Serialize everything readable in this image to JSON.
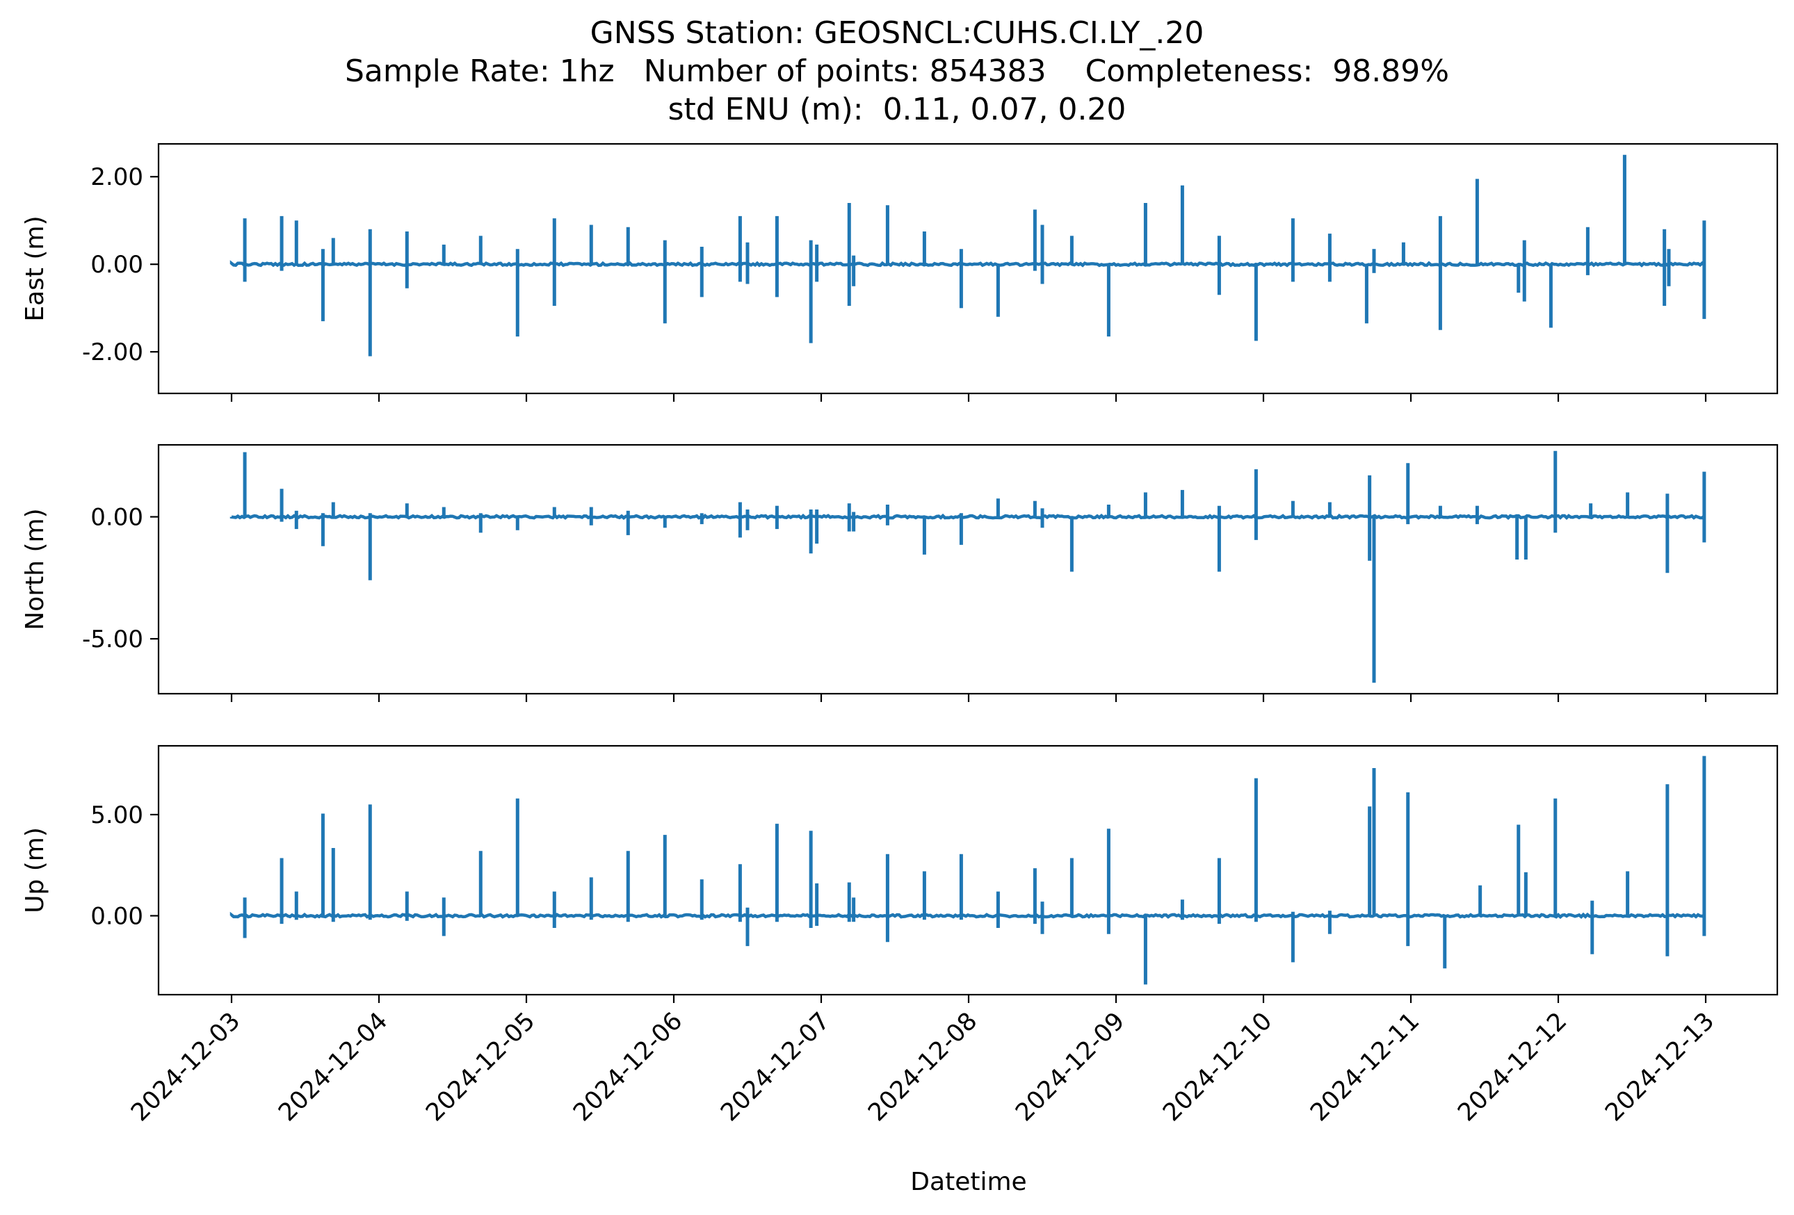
{
  "title": {
    "line1": "GNSS Station: GEOSNCL:CUHS.CI.LY_.20",
    "line2": "Sample Rate: 1hz   Number of points: 854383    Completeness:  98.89%",
    "line3": "std ENU (m):  0.11, 0.07, 0.20"
  },
  "xlabel": "Datetime",
  "x_ticks": [
    "2024-12-03",
    "2024-12-04",
    "2024-12-05",
    "2024-12-06",
    "2024-12-07",
    "2024-12-08",
    "2024-12-09",
    "2024-12-10",
    "2024-12-11",
    "2024-12-12",
    "2024-12-13"
  ],
  "colors": {
    "series": "#1f77b4",
    "axes": "#000000",
    "background": "#ffffff"
  },
  "chart_data": [
    {
      "type": "line",
      "ylabel": "East (m)",
      "x_units": "days",
      "xlim": [
        "2024-12-02 12:00",
        "2024-12-13 12:00"
      ],
      "ylim": [
        -2.95,
        2.75
      ],
      "y_ticks": [
        -2.0,
        0.0,
        2.0
      ],
      "y_tick_labels": [
        "-2.00",
        "0.00",
        "2.00"
      ],
      "baseline": 0.0,
      "spikes": [
        {
          "t": 0.09,
          "lo": -0.4,
          "hi": 1.05
        },
        {
          "t": 0.34,
          "lo": -0.15,
          "hi": 1.1
        },
        {
          "t": 0.44,
          "lo": 0.0,
          "hi": 1.0
        },
        {
          "t": 0.62,
          "lo": -1.3,
          "hi": 0.35
        },
        {
          "t": 0.69,
          "lo": 0.0,
          "hi": 0.6
        },
        {
          "t": 0.94,
          "lo": -2.1,
          "hi": 0.8
        },
        {
          "t": 1.19,
          "lo": -0.55,
          "hi": 0.75
        },
        {
          "t": 1.44,
          "lo": 0.0,
          "hi": 0.45
        },
        {
          "t": 1.69,
          "lo": 0.0,
          "hi": 0.65
        },
        {
          "t": 1.94,
          "lo": -1.65,
          "hi": 0.35
        },
        {
          "t": 2.19,
          "lo": -0.95,
          "hi": 1.05
        },
        {
          "t": 2.44,
          "lo": 0.0,
          "hi": 0.9
        },
        {
          "t": 2.69,
          "lo": 0.0,
          "hi": 0.85
        },
        {
          "t": 2.94,
          "lo": -1.35,
          "hi": 0.55
        },
        {
          "t": 3.19,
          "lo": -0.75,
          "hi": 0.4
        },
        {
          "t": 3.45,
          "lo": -0.4,
          "hi": 1.1
        },
        {
          "t": 3.5,
          "lo": -0.45,
          "hi": 0.5
        },
        {
          "t": 3.7,
          "lo": -0.75,
          "hi": 1.1
        },
        {
          "t": 3.93,
          "lo": -1.8,
          "hi": 0.55
        },
        {
          "t": 3.97,
          "lo": -0.4,
          "hi": 0.45
        },
        {
          "t": 4.19,
          "lo": -0.95,
          "hi": 1.4
        },
        {
          "t": 4.22,
          "lo": -0.5,
          "hi": 0.2
        },
        {
          "t": 4.45,
          "lo": 0.0,
          "hi": 1.35
        },
        {
          "t": 4.7,
          "lo": 0.0,
          "hi": 0.75
        },
        {
          "t": 4.95,
          "lo": -1.0,
          "hi": 0.35
        },
        {
          "t": 5.2,
          "lo": -1.2,
          "hi": 0.0
        },
        {
          "t": 5.45,
          "lo": -0.15,
          "hi": 1.25
        },
        {
          "t": 5.5,
          "lo": -0.45,
          "hi": 0.9
        },
        {
          "t": 5.7,
          "lo": 0.0,
          "hi": 0.65
        },
        {
          "t": 5.95,
          "lo": -1.65,
          "hi": 0.0
        },
        {
          "t": 6.2,
          "lo": 0.0,
          "hi": 1.4
        },
        {
          "t": 6.45,
          "lo": 0.0,
          "hi": 1.8
        },
        {
          "t": 6.7,
          "lo": -0.7,
          "hi": 0.65
        },
        {
          "t": 6.95,
          "lo": -1.75,
          "hi": 0.0
        },
        {
          "t": 7.2,
          "lo": -0.4,
          "hi": 1.05
        },
        {
          "t": 7.45,
          "lo": -0.4,
          "hi": 0.7
        },
        {
          "t": 7.7,
          "lo": -1.35,
          "hi": 0.0
        },
        {
          "t": 7.75,
          "lo": -0.2,
          "hi": 0.35
        },
        {
          "t": 7.95,
          "lo": 0.0,
          "hi": 0.5
        },
        {
          "t": 8.2,
          "lo": -1.5,
          "hi": 1.1
        },
        {
          "t": 8.45,
          "lo": 0.0,
          "hi": 1.95
        },
        {
          "t": 8.73,
          "lo": -0.65,
          "hi": 0.0
        },
        {
          "t": 8.77,
          "lo": -0.85,
          "hi": 0.55
        },
        {
          "t": 8.95,
          "lo": -1.45,
          "hi": 0.0
        },
        {
          "t": 9.2,
          "lo": -0.25,
          "hi": 0.85
        },
        {
          "t": 9.45,
          "lo": 0.0,
          "hi": 2.5
        },
        {
          "t": 9.72,
          "lo": -0.95,
          "hi": 0.8
        },
        {
          "t": 9.75,
          "lo": -0.5,
          "hi": 0.35
        },
        {
          "t": 9.99,
          "lo": -1.25,
          "hi": 1.0
        }
      ]
    },
    {
      "type": "line",
      "ylabel": "North (m)",
      "x_units": "days",
      "xlim": [
        "2024-12-02 12:00",
        "2024-12-13 12:00"
      ],
      "ylim": [
        -7.25,
        2.95
      ],
      "y_ticks": [
        -5.0,
        0.0
      ],
      "y_tick_labels": [
        "-5.00",
        "0.00"
      ],
      "baseline": 0.0,
      "spikes": [
        {
          "t": 0.09,
          "lo": 0.0,
          "hi": 2.65
        },
        {
          "t": 0.34,
          "lo": -0.2,
          "hi": 1.15
        },
        {
          "t": 0.44,
          "lo": -0.5,
          "hi": 0.25
        },
        {
          "t": 0.62,
          "lo": -1.2,
          "hi": 0.15
        },
        {
          "t": 0.69,
          "lo": 0.0,
          "hi": 0.6
        },
        {
          "t": 0.94,
          "lo": -2.6,
          "hi": 0.15
        },
        {
          "t": 1.19,
          "lo": 0.0,
          "hi": 0.55
        },
        {
          "t": 1.44,
          "lo": 0.0,
          "hi": 0.4
        },
        {
          "t": 1.69,
          "lo": -0.65,
          "hi": 0.15
        },
        {
          "t": 1.94,
          "lo": -0.55,
          "hi": 0.0
        },
        {
          "t": 2.19,
          "lo": 0.0,
          "hi": 0.4
        },
        {
          "t": 2.44,
          "lo": -0.35,
          "hi": 0.4
        },
        {
          "t": 2.69,
          "lo": -0.75,
          "hi": 0.25
        },
        {
          "t": 2.94,
          "lo": -0.45,
          "hi": 0.0
        },
        {
          "t": 3.19,
          "lo": -0.3,
          "hi": 0.15
        },
        {
          "t": 3.45,
          "lo": -0.85,
          "hi": 0.6
        },
        {
          "t": 3.5,
          "lo": -0.55,
          "hi": 0.3
        },
        {
          "t": 3.7,
          "lo": -0.5,
          "hi": 0.45
        },
        {
          "t": 3.93,
          "lo": -1.5,
          "hi": 0.3
        },
        {
          "t": 3.97,
          "lo": -1.1,
          "hi": 0.3
        },
        {
          "t": 4.19,
          "lo": -0.6,
          "hi": 0.55
        },
        {
          "t": 4.22,
          "lo": -0.6,
          "hi": 0.2
        },
        {
          "t": 4.45,
          "lo": -0.35,
          "hi": 0.5
        },
        {
          "t": 4.7,
          "lo": -1.55,
          "hi": 0.0
        },
        {
          "t": 4.95,
          "lo": -1.15,
          "hi": 0.15
        },
        {
          "t": 5.2,
          "lo": 0.0,
          "hi": 0.75
        },
        {
          "t": 5.45,
          "lo": 0.0,
          "hi": 0.65
        },
        {
          "t": 5.5,
          "lo": -0.45,
          "hi": 0.35
        },
        {
          "t": 5.7,
          "lo": -2.25,
          "hi": 0.0
        },
        {
          "t": 5.95,
          "lo": 0.0,
          "hi": 0.5
        },
        {
          "t": 6.2,
          "lo": 0.0,
          "hi": 1.0
        },
        {
          "t": 6.45,
          "lo": 0.0,
          "hi": 1.1
        },
        {
          "t": 6.7,
          "lo": -2.25,
          "hi": 0.45
        },
        {
          "t": 6.95,
          "lo": -0.95,
          "hi": 1.95
        },
        {
          "t": 7.2,
          "lo": 0.0,
          "hi": 0.65
        },
        {
          "t": 7.45,
          "lo": 0.0,
          "hi": 0.6
        },
        {
          "t": 7.72,
          "lo": -1.8,
          "hi": 1.7
        },
        {
          "t": 7.75,
          "lo": -6.8,
          "hi": 0.0
        },
        {
          "t": 7.98,
          "lo": -0.3,
          "hi": 2.2
        },
        {
          "t": 8.2,
          "lo": 0.0,
          "hi": 0.45
        },
        {
          "t": 8.45,
          "lo": -0.3,
          "hi": 0.45
        },
        {
          "t": 8.72,
          "lo": -1.75,
          "hi": 0.0
        },
        {
          "t": 8.78,
          "lo": -1.75,
          "hi": 0.0
        },
        {
          "t": 8.98,
          "lo": -0.65,
          "hi": 2.7
        },
        {
          "t": 9.22,
          "lo": 0.0,
          "hi": 0.55
        },
        {
          "t": 9.47,
          "lo": 0.0,
          "hi": 1.0
        },
        {
          "t": 9.74,
          "lo": -2.3,
          "hi": 0.95
        },
        {
          "t": 9.99,
          "lo": -1.05,
          "hi": 1.85
        }
      ]
    },
    {
      "type": "line",
      "ylabel": "Up (m)",
      "x_units": "days",
      "xlim": [
        "2024-12-02 12:00",
        "2024-12-13 12:00"
      ],
      "ylim": [
        -3.9,
        8.4
      ],
      "y_ticks": [
        0.0,
        5.0
      ],
      "y_tick_labels": [
        "0.00",
        "5.00"
      ],
      "baseline": 0.0,
      "spikes": [
        {
          "t": 0.09,
          "lo": -1.1,
          "hi": 0.9
        },
        {
          "t": 0.34,
          "lo": -0.4,
          "hi": 2.85
        },
        {
          "t": 0.44,
          "lo": -0.2,
          "hi": 1.2
        },
        {
          "t": 0.62,
          "lo": -0.1,
          "hi": 5.05
        },
        {
          "t": 0.69,
          "lo": -0.3,
          "hi": 3.35
        },
        {
          "t": 0.94,
          "lo": -0.2,
          "hi": 5.5
        },
        {
          "t": 1.19,
          "lo": -0.25,
          "hi": 1.2
        },
        {
          "t": 1.44,
          "lo": -1.0,
          "hi": 0.9
        },
        {
          "t": 1.69,
          "lo": 0.0,
          "hi": 3.2
        },
        {
          "t": 1.94,
          "lo": 0.0,
          "hi": 5.8
        },
        {
          "t": 2.19,
          "lo": -0.6,
          "hi": 1.2
        },
        {
          "t": 2.44,
          "lo": -0.2,
          "hi": 1.9
        },
        {
          "t": 2.69,
          "lo": -0.3,
          "hi": 3.2
        },
        {
          "t": 2.94,
          "lo": 0.0,
          "hi": 4.0
        },
        {
          "t": 3.19,
          "lo": -0.2,
          "hi": 1.8
        },
        {
          "t": 3.45,
          "lo": -0.3,
          "hi": 2.55
        },
        {
          "t": 3.5,
          "lo": -1.5,
          "hi": 0.4
        },
        {
          "t": 3.7,
          "lo": -0.3,
          "hi": 4.55
        },
        {
          "t": 3.93,
          "lo": -0.6,
          "hi": 4.2
        },
        {
          "t": 3.97,
          "lo": -0.5,
          "hi": 1.6
        },
        {
          "t": 4.19,
          "lo": -0.3,
          "hi": 1.65
        },
        {
          "t": 4.22,
          "lo": -0.3,
          "hi": 0.9
        },
        {
          "t": 4.45,
          "lo": -1.3,
          "hi": 3.05
        },
        {
          "t": 4.7,
          "lo": -0.2,
          "hi": 2.2
        },
        {
          "t": 4.95,
          "lo": -0.2,
          "hi": 3.05
        },
        {
          "t": 5.2,
          "lo": -0.6,
          "hi": 1.2
        },
        {
          "t": 5.45,
          "lo": -0.4,
          "hi": 2.35
        },
        {
          "t": 5.5,
          "lo": -0.9,
          "hi": 0.7
        },
        {
          "t": 5.7,
          "lo": 0.0,
          "hi": 2.85
        },
        {
          "t": 5.95,
          "lo": -0.9,
          "hi": 4.3
        },
        {
          "t": 6.2,
          "lo": -3.4,
          "hi": 0.0
        },
        {
          "t": 6.45,
          "lo": -0.2,
          "hi": 0.8
        },
        {
          "t": 6.7,
          "lo": -0.4,
          "hi": 2.85
        },
        {
          "t": 6.95,
          "lo": -0.3,
          "hi": 6.8
        },
        {
          "t": 7.2,
          "lo": -2.3,
          "hi": 0.2
        },
        {
          "t": 7.45,
          "lo": -0.9,
          "hi": 0.25
        },
        {
          "t": 7.72,
          "lo": 0.0,
          "hi": 5.4
        },
        {
          "t": 7.75,
          "lo": 0.0,
          "hi": 7.3
        },
        {
          "t": 7.98,
          "lo": -1.5,
          "hi": 6.1
        },
        {
          "t": 8.23,
          "lo": -2.6,
          "hi": 0.0
        },
        {
          "t": 8.47,
          "lo": 0.0,
          "hi": 1.5
        },
        {
          "t": 8.73,
          "lo": 0.0,
          "hi": 4.5
        },
        {
          "t": 8.78,
          "lo": 0.0,
          "hi": 2.15
        },
        {
          "t": 8.98,
          "lo": 0.0,
          "hi": 5.8
        },
        {
          "t": 9.23,
          "lo": -1.9,
          "hi": 0.75
        },
        {
          "t": 9.47,
          "lo": 0.0,
          "hi": 2.2
        },
        {
          "t": 9.74,
          "lo": -2.0,
          "hi": 6.5
        },
        {
          "t": 9.99,
          "lo": -1.0,
          "hi": 7.9
        }
      ]
    }
  ]
}
